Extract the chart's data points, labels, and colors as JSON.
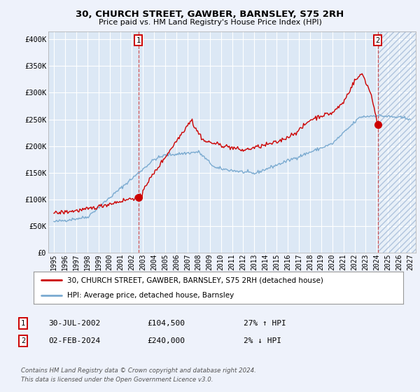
{
  "title": "30, CHURCH STREET, GAWBER, BARNSLEY, S75 2RH",
  "subtitle": "Price paid vs. HM Land Registry's House Price Index (HPI)",
  "background_color": "#eef2fb",
  "plot_bg_color": "#dce8f5",
  "grid_color": "#ffffff",
  "red_line_color": "#cc0000",
  "blue_line_color": "#7aaad0",
  "marker1_x": 2002.58,
  "marker1_y": 104500,
  "marker2_x": 2024.09,
  "marker2_y": 240000,
  "vline1_x": 2002.58,
  "vline2_x": 2024.09,
  "yticks": [
    0,
    50000,
    100000,
    150000,
    200000,
    250000,
    300000,
    350000,
    400000
  ],
  "ytick_labels": [
    "£0",
    "£50K",
    "£100K",
    "£150K",
    "£200K",
    "£250K",
    "£300K",
    "£350K",
    "£400K"
  ],
  "xlim": [
    1994.5,
    2027.5
  ],
  "ylim": [
    0,
    415000
  ],
  "legend_line1": "30, CHURCH STREET, GAWBER, BARNSLEY, S75 2RH (detached house)",
  "legend_line2": "HPI: Average price, detached house, Barnsley",
  "annotation1_date": "30-JUL-2002",
  "annotation1_price": "£104,500",
  "annotation1_hpi": "27% ↑ HPI",
  "annotation2_date": "02-FEB-2024",
  "annotation2_price": "£240,000",
  "annotation2_hpi": "2% ↓ HPI",
  "footer_line1": "Contains HM Land Registry data © Crown copyright and database right 2024.",
  "footer_line2": "This data is licensed under the Open Government Licence v3.0.",
  "xticks": [
    1995,
    1996,
    1997,
    1998,
    1999,
    2000,
    2001,
    2002,
    2003,
    2004,
    2005,
    2006,
    2007,
    2008,
    2009,
    2010,
    2011,
    2012,
    2013,
    2014,
    2015,
    2016,
    2017,
    2018,
    2019,
    2020,
    2021,
    2022,
    2023,
    2024,
    2025,
    2026,
    2027
  ]
}
